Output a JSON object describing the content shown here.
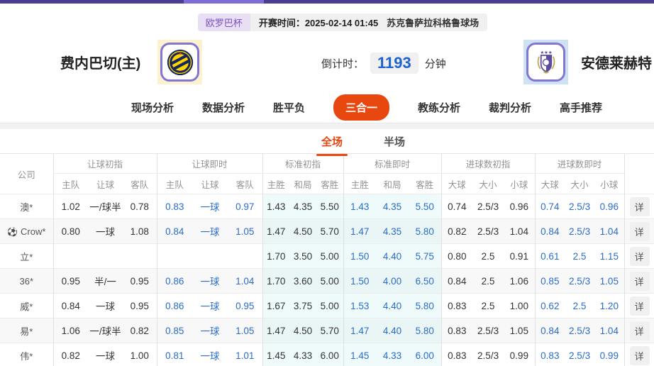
{
  "colors": {
    "accent": "#e8470f",
    "live_blue": "#2a6dc9",
    "topbar_purple": "#4b3d90",
    "league_badge_bg": "#e8dff4",
    "league_text": "#7c50c0",
    "countdown_blue": "#1d63cf",
    "std_col_tint": "#eefafb",
    "home_logo_bg": "#fdf2d0",
    "away_logo_bg": "#cfe2f3"
  },
  "top": {
    "league": "欧罗巴杯",
    "kickoff": "开赛时间：2025-02-14 01:45",
    "stadium": "苏克鲁萨拉科格鲁球场"
  },
  "match": {
    "home_name": "费内巴切(主)",
    "away_name": "安德莱赫特",
    "countdown_label": "倒计时：",
    "countdown_value": "1193",
    "countdown_unit": "分钟"
  },
  "nav_tabs": [
    {
      "label": "现场分析",
      "active": false
    },
    {
      "label": "数据分析",
      "active": false
    },
    {
      "label": "胜平负",
      "active": false
    },
    {
      "label": "三合一",
      "active": true
    },
    {
      "label": "教练分析",
      "active": false
    },
    {
      "label": "裁判分析",
      "active": false
    },
    {
      "label": "高手推荐",
      "active": false
    }
  ],
  "sub_tabs": [
    {
      "label": "全场",
      "active": true
    },
    {
      "label": "半场",
      "active": false
    }
  ],
  "table": {
    "company_header": "公司",
    "groups": [
      {
        "label": "让球初指",
        "cols": [
          "主队",
          "让球",
          "客队"
        ]
      },
      {
        "label": "让球即时",
        "cols": [
          "主队",
          "让球",
          "客队"
        ]
      },
      {
        "label": "标准初指",
        "cols": [
          "主胜",
          "和局",
          "客胜"
        ]
      },
      {
        "label": "标准即时",
        "cols": [
          "主胜",
          "和局",
          "客胜"
        ]
      },
      {
        "label": "进球数初指",
        "cols": [
          "大球",
          "大小",
          "小球"
        ]
      },
      {
        "label": "进球数即时",
        "cols": [
          "大球",
          "大小",
          "小球"
        ]
      }
    ],
    "detail_label": "详",
    "rows": [
      {
        "company": "澳*",
        "ball_icon": false,
        "handicap_init": [
          "1.02",
          "一/球半",
          "0.78"
        ],
        "handicap_live": [
          "0.83",
          "一球",
          "0.97"
        ],
        "std_init": [
          "1.43",
          "4.35",
          "5.50"
        ],
        "std_live": [
          "1.43",
          "4.35",
          "5.50"
        ],
        "goals_init": [
          "0.74",
          "2.5/3",
          "0.96"
        ],
        "goals_live": [
          "0.74",
          "2.5/3",
          "0.96"
        ]
      },
      {
        "company": "Crow*",
        "ball_icon": true,
        "handicap_init": [
          "0.80",
          "一球",
          "1.08"
        ],
        "handicap_live": [
          "0.84",
          "一球",
          "1.05"
        ],
        "std_init": [
          "1.47",
          "4.50",
          "5.70"
        ],
        "std_live": [
          "1.47",
          "4.35",
          "5.80"
        ],
        "goals_init": [
          "0.82",
          "2.5/3",
          "1.04"
        ],
        "goals_live": [
          "0.84",
          "2.5/3",
          "1.04"
        ]
      },
      {
        "company": "立*",
        "ball_icon": false,
        "handicap_init": [
          "",
          "",
          ""
        ],
        "handicap_live": [
          "",
          "",
          ""
        ],
        "std_init": [
          "1.70",
          "3.50",
          "5.00"
        ],
        "std_live": [
          "1.50",
          "4.40",
          "5.75"
        ],
        "goals_init": [
          "0.80",
          "2.5",
          "0.91"
        ],
        "goals_live": [
          "0.61",
          "2.5",
          "1.15"
        ]
      },
      {
        "company": "36*",
        "ball_icon": false,
        "handicap_init": [
          "0.95",
          "半/一",
          "0.95"
        ],
        "handicap_live": [
          "0.86",
          "一球",
          "1.04"
        ],
        "std_init": [
          "1.70",
          "3.60",
          "5.00"
        ],
        "std_live": [
          "1.50",
          "4.00",
          "6.50"
        ],
        "goals_init": [
          "0.84",
          "2.5",
          "1.06"
        ],
        "goals_live": [
          "0.85",
          "2.5/3",
          "1.05"
        ]
      },
      {
        "company": "威*",
        "ball_icon": false,
        "handicap_init": [
          "0.84",
          "一球",
          "0.95"
        ],
        "handicap_live": [
          "0.86",
          "一球",
          "0.95"
        ],
        "std_init": [
          "1.67",
          "3.75",
          "5.00"
        ],
        "std_live": [
          "1.53",
          "4.40",
          "5.80"
        ],
        "goals_init": [
          "0.83",
          "2.5",
          "1.00"
        ],
        "goals_live": [
          "0.62",
          "2.5",
          "1.20"
        ]
      },
      {
        "company": "易*",
        "ball_icon": false,
        "handicap_init": [
          "1.06",
          "一/球半",
          "0.82"
        ],
        "handicap_live": [
          "0.85",
          "一球",
          "1.05"
        ],
        "std_init": [
          "1.47",
          "4.50",
          "5.70"
        ],
        "std_live": [
          "1.47",
          "4.40",
          "5.80"
        ],
        "goals_init": [
          "0.83",
          "2.5/3",
          "1.05"
        ],
        "goals_live": [
          "0.84",
          "2.5/3",
          "1.04"
        ]
      },
      {
        "company": "伟*",
        "ball_icon": false,
        "handicap_init": [
          "0.82",
          "一球",
          "1.00"
        ],
        "handicap_live": [
          "0.81",
          "一球",
          "1.01"
        ],
        "std_init": [
          "1.45",
          "4.33",
          "6.00"
        ],
        "std_live": [
          "1.45",
          "4.33",
          "6.00"
        ],
        "goals_init": [
          "0.83",
          "2.5/3",
          "0.99"
        ],
        "goals_live": [
          "0.83",
          "2.5/3",
          "0.99"
        ]
      }
    ]
  }
}
